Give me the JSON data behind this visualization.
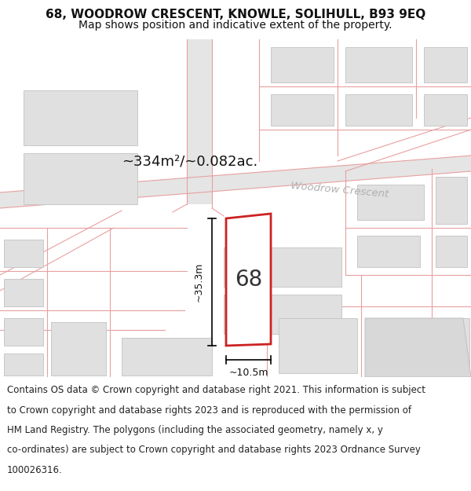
{
  "title": "68, WOODROW CRESCENT, KNOWLE, SOLIHULL, B93 9EQ",
  "subtitle": "Map shows position and indicative extent of the property.",
  "bg_color": "#ffffff",
  "road_fill": "#e8e8e8",
  "road_line_color": "#e8a0a0",
  "plot_fill": "#ffffff",
  "plot_edge": "#cc2222",
  "parcel_fill": "#e0e0e0",
  "parcel_edge": "#c8c8c8",
  "area_text": "~334m²/~0.082ac.",
  "street_label": "Woodrow Crescent",
  "number_label": "68",
  "dim_width": "~10.5m",
  "dim_height": "~35.3m",
  "title_fontsize": 11,
  "subtitle_fontsize": 10,
  "footer_fontsize": 8.5,
  "footer_lines": [
    "Contains OS data © Crown copyright and database right 2021. This information is subject",
    "to Crown copyright and database rights 2023 and is reproduced with the permission of",
    "HM Land Registry. The polygons (including the associated geometry, namely x, y",
    "co-ordinates) are subject to Crown copyright and database rights 2023 Ordnance Survey",
    "100026316."
  ]
}
